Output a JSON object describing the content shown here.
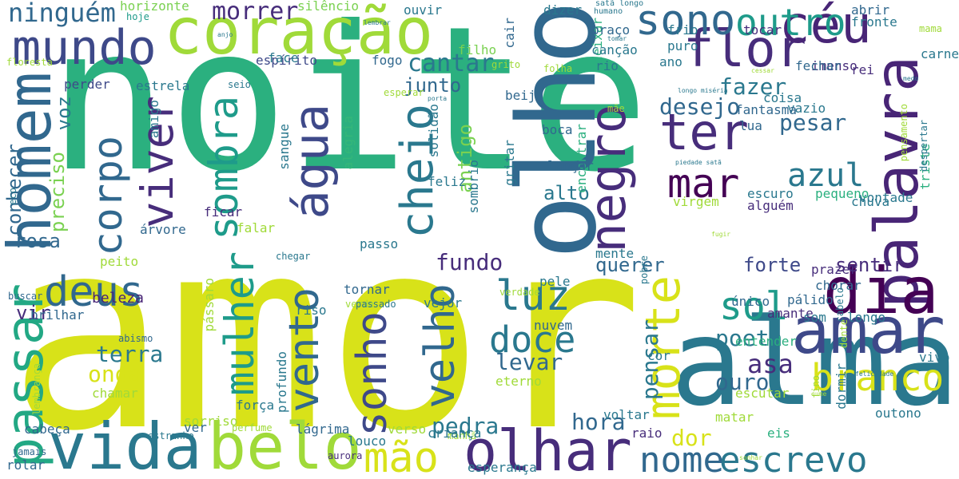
{
  "palette": {
    "c1": "#2bb07f",
    "c2": "#d8e219",
    "c3": "#482576",
    "c4": "#2a788e",
    "c5": "#31688e",
    "c6": "#3e4989",
    "c7": "#22a884",
    "c8": "#440154",
    "c9": "#7ad151",
    "c10": "#35b779",
    "c11": "#1e9b8a",
    "c12": "#472d7b",
    "c13": "#a0da39"
  },
  "words": [
    {
      "text": "noite",
      "color": "c1"
    },
    {
      "text": "amor",
      "color": "c2"
    },
    {
      "text": "alma",
      "color": "c4"
    },
    {
      "text": "coração",
      "color": "c13"
    },
    {
      "text": "olho",
      "color": "c5"
    },
    {
      "text": "palavra",
      "color": "c3"
    },
    {
      "text": "dia",
      "color": "c8"
    },
    {
      "text": "amar",
      "color": "c6"
    },
    {
      "text": "vida",
      "color": "c4"
    },
    {
      "text": "belo",
      "color": "c13"
    },
    {
      "text": "olhar",
      "color": "c12"
    },
    {
      "text": "mundo",
      "color": "c6"
    },
    {
      "text": "homem",
      "color": "c5"
    },
    {
      "text": "flor",
      "color": "c12"
    },
    {
      "text": "céu",
      "color": "c3"
    },
    {
      "text": "sono",
      "color": "c5"
    },
    {
      "text": "outro",
      "color": "c11"
    },
    {
      "text": "ter",
      "color": "c12"
    },
    {
      "text": "mar",
      "color": "c8"
    },
    {
      "text": "negro",
      "color": "c12"
    },
    {
      "text": "morte",
      "color": "c2"
    },
    {
      "text": "luz",
      "color": "c4"
    },
    {
      "text": "sol",
      "color": "c11"
    },
    {
      "text": "deus",
      "color": "c5"
    },
    {
      "text": "passar",
      "color": "c7"
    },
    {
      "text": "mão",
      "color": "c2"
    },
    {
      "text": "nome",
      "color": "c5"
    },
    {
      "text": "escrevo",
      "color": "c4"
    },
    {
      "text": "branco",
      "color": "c2"
    },
    {
      "text": "sonho",
      "color": "c6"
    },
    {
      "text": "vento",
      "color": "c5"
    },
    {
      "text": "doce",
      "color": "c4"
    },
    {
      "text": "velho",
      "color": "c5"
    },
    {
      "text": "cheio",
      "color": "c4"
    },
    {
      "text": "água",
      "color": "c6"
    },
    {
      "text": "viver",
      "color": "c12"
    },
    {
      "text": "corpo",
      "color": "c5"
    },
    {
      "text": "sombra",
      "color": "c11"
    },
    {
      "text": "mulher",
      "color": "c11"
    },
    {
      "text": "azul",
      "color": "c4"
    },
    {
      "text": "ninguém",
      "color": "c5"
    },
    {
      "text": "morrer",
      "color": "c12"
    },
    {
      "text": "cantar",
      "color": "c4"
    },
    {
      "text": "desejo",
      "color": "c5"
    },
    {
      "text": "pesar",
      "color": "c5"
    },
    {
      "text": "fazer",
      "color": "c4"
    },
    {
      "text": "pensar",
      "color": "c4"
    },
    {
      "text": "asa",
      "color": "c12"
    },
    {
      "text": "ouro",
      "color": "c5"
    },
    {
      "text": "poeta",
      "color": "c4"
    },
    {
      "text": "levar",
      "color": "c5"
    },
    {
      "text": "terra",
      "color": "c4"
    },
    {
      "text": "onda",
      "color": "c2"
    },
    {
      "text": "pedra",
      "color": "c4"
    },
    {
      "text": "hora",
      "color": "c5"
    },
    {
      "text": "dor",
      "color": "c2"
    },
    {
      "text": "fundo",
      "color": "c12"
    },
    {
      "text": "querer",
      "color": "c5"
    },
    {
      "text": "sentir",
      "color": "c12"
    },
    {
      "text": "forte",
      "color": "c6"
    },
    {
      "text": "alto",
      "color": "c4"
    },
    {
      "text": "junto",
      "color": "c5"
    },
    {
      "text": "antigo",
      "color": "c9"
    },
    {
      "text": "rosa",
      "color": "c5"
    },
    {
      "text": "vir",
      "color": "c12"
    },
    {
      "text": "conhecer",
      "color": "c5"
    },
    {
      "text": "preciso",
      "color": "c9"
    },
    {
      "text": "voz",
      "color": "c4"
    },
    {
      "text": "beleza",
      "color": "c3"
    },
    {
      "text": "horizonte",
      "color": "c9"
    },
    {
      "text": "silêncio",
      "color": "c9"
    },
    {
      "text": "perder",
      "color": "c6"
    },
    {
      "text": "estrela",
      "color": "c4"
    },
    {
      "text": "espírito",
      "color": "c6"
    },
    {
      "text": "floresta",
      "color": "c13"
    },
    {
      "text": "hoje",
      "color": "c11"
    },
    {
      "text": "ouvir",
      "color": "c4"
    },
    {
      "text": "dizer",
      "color": "c4"
    },
    {
      "text": "filho",
      "color": "c9"
    },
    {
      "text": "cair",
      "color": "c5"
    },
    {
      "text": "deixar",
      "color": "c1"
    },
    {
      "text": "braço",
      "color": "c5"
    },
    {
      "text": "canção",
      "color": "c4"
    },
    {
      "text": "rio",
      "color": "c4"
    },
    {
      "text": "abrir",
      "color": "c5"
    },
    {
      "text": "fronte",
      "color": "c4"
    },
    {
      "text": "rei",
      "color": "c12"
    },
    {
      "text": "imenso",
      "color": "c12"
    },
    {
      "text": "fechar",
      "color": "c5"
    },
    {
      "text": "tocar",
      "color": "c12"
    },
    {
      "text": "frio",
      "color": "c4"
    },
    {
      "text": "puro",
      "color": "c4"
    },
    {
      "text": "ano",
      "color": "c4"
    },
    {
      "text": "face",
      "color": "c4"
    },
    {
      "text": "fogo",
      "color": "c5"
    },
    {
      "text": "beijo",
      "color": "c5"
    },
    {
      "text": "boca",
      "color": "c5"
    },
    {
      "text": "coisa",
      "color": "c4"
    },
    {
      "text": "vazio",
      "color": "c4"
    },
    {
      "text": "lua",
      "color": "c5"
    },
    {
      "text": "fantasma",
      "color": "c5"
    },
    {
      "text": "encontrar",
      "color": "c1"
    },
    {
      "text": "lançar",
      "color": "c5"
    },
    {
      "text": "vontade",
      "color": "c4"
    },
    {
      "text": "pequeno",
      "color": "c1"
    },
    {
      "text": "triste",
      "color": "c1"
    },
    {
      "text": "escuro",
      "color": "c4"
    },
    {
      "text": "virgem",
      "color": "c13"
    },
    {
      "text": "chuva",
      "color": "c4"
    },
    {
      "text": "ficar",
      "color": "c12"
    },
    {
      "text": "alguém",
      "color": "c12"
    },
    {
      "text": "falar",
      "color": "c13"
    },
    {
      "text": "mente",
      "color": "c4"
    },
    {
      "text": "gritar",
      "color": "c4"
    },
    {
      "text": "sombrio",
      "color": "c4"
    },
    {
      "text": "feliz",
      "color": "c4"
    },
    {
      "text": "solidão",
      "color": "c4"
    },
    {
      "text": "alegria",
      "color": "c10"
    },
    {
      "text": "sangue",
      "color": "c4"
    },
    {
      "text": "amigo",
      "color": "c4"
    },
    {
      "text": "seio",
      "color": "c4"
    },
    {
      "text": "árvore",
      "color": "c5"
    },
    {
      "text": "eco",
      "color": "c4"
    },
    {
      "text": "peito",
      "color": "c13"
    },
    {
      "text": "pássaro",
      "color": "c13"
    },
    {
      "text": "passo",
      "color": "c4"
    },
    {
      "text": "chegar",
      "color": "c4"
    },
    {
      "text": "pele",
      "color": "c4"
    },
    {
      "text": "nuvem",
      "color": "c5"
    },
    {
      "text": "eterno",
      "color": "c13"
    },
    {
      "text": "chamar",
      "color": "c13"
    },
    {
      "text": "abismo",
      "color": "c5"
    },
    {
      "text": "buscar",
      "color": "c5"
    },
    {
      "text": "brilhar",
      "color": "c5"
    },
    {
      "text": "riso",
      "color": "c4"
    },
    {
      "text": "tornar",
      "color": "c5"
    },
    {
      "text": "verde",
      "color": "c13"
    },
    {
      "text": "vejor",
      "color": "c4"
    },
    {
      "text": "verdade",
      "color": "c13"
    },
    {
      "text": "passado",
      "color": "c4"
    },
    {
      "text": "único",
      "color": "c5"
    },
    {
      "text": "pálido",
      "color": "c5"
    },
    {
      "text": "chorar",
      "color": "c5"
    },
    {
      "text": "prazer",
      "color": "c12"
    },
    {
      "text": "amante",
      "color": "c12"
    },
    {
      "text": "som",
      "color": "c4"
    },
    {
      "text": "longo",
      "color": "c4"
    },
    {
      "text": "entender",
      "color": "c1"
    },
    {
      "text": "cor",
      "color": "c4"
    },
    {
      "text": "vivo",
      "color": "c4"
    },
    {
      "text": "escutar",
      "color": "c13"
    },
    {
      "text": "matar",
      "color": "c13"
    },
    {
      "text": "outono",
      "color": "c4"
    },
    {
      "text": "dormir",
      "color": "c4"
    },
    {
      "text": "fino",
      "color": "c13"
    },
    {
      "text": "eis",
      "color": "c1"
    },
    {
      "text": "voltar",
      "color": "c4"
    },
    {
      "text": "raio",
      "color": "c12"
    },
    {
      "text": "manhã",
      "color": "c13"
    },
    {
      "text": "louco",
      "color": "c4"
    },
    {
      "text": "criança",
      "color": "c4"
    },
    {
      "text": "lágrima",
      "color": "c5"
    },
    {
      "text": "verso",
      "color": "c13"
    },
    {
      "text": "esperança",
      "color": "c4"
    },
    {
      "text": "aurora",
      "color": "c12"
    },
    {
      "text": "perfume",
      "color": "c13"
    },
    {
      "text": "força",
      "color": "c4"
    },
    {
      "text": "sorriso",
      "color": "c13"
    },
    {
      "text": "profundo",
      "color": "c4"
    },
    {
      "text": "ver",
      "color": "c5"
    },
    {
      "text": "estranho",
      "color": "c4"
    },
    {
      "text": "cabeça",
      "color": "c5"
    },
    {
      "text": "lembrança",
      "color": "c13"
    },
    {
      "text": "jamais",
      "color": "c5"
    },
    {
      "text": "rolar",
      "color": "c5"
    },
    {
      "text": "carne",
      "color": "c4"
    },
    {
      "text": "mama",
      "color": "c13"
    },
    {
      "text": "despertar",
      "color": "c4"
    },
    {
      "text": "pensamento",
      "color": "c13"
    },
    {
      "text": "cabelo",
      "color": "c4"
    },
    {
      "text": "dente",
      "color": "c13"
    },
    {
      "text": "pobre",
      "color": "c4"
    },
    {
      "text": "mãe",
      "color": "c13"
    },
    {
      "text": "folha",
      "color": "c13"
    },
    {
      "text": "grito",
      "color": "c13"
    },
    {
      "text": "esperar",
      "color": "c13"
    },
    {
      "text": "humano",
      "color": "c4"
    },
    {
      "text": "satã longo",
      "color": "c4"
    },
    {
      "text": "lembrar",
      "color": "c4"
    },
    {
      "text": "anjo",
      "color": "c4"
    },
    {
      "text": "tomar",
      "color": "c4"
    },
    {
      "text": "cessar",
      "color": "c13"
    },
    {
      "text": "medo",
      "color": "c4"
    },
    {
      "text": "longo miséria",
      "color": "c4"
    },
    {
      "text": "porta",
      "color": "c4"
    },
    {
      "text": "piedade satã",
      "color": "c4"
    },
    {
      "text": "fugir",
      "color": "c13"
    },
    {
      "text": "felicidade",
      "color": "c4"
    },
    {
      "text": "sonhar",
      "color": "c13"
    },
    {
      "text": "cume",
      "color": "c13"
    }
  ]
}
